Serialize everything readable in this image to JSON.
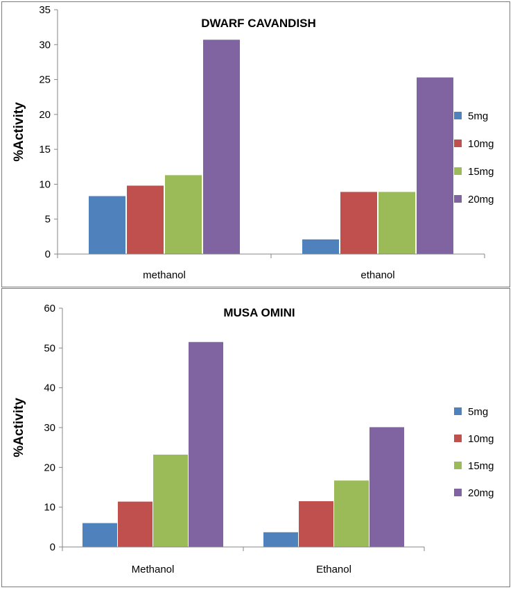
{
  "chart_data": [
    {
      "type": "bar",
      "title": "DWARF CAVANDISH",
      "ylabel": "%Activity",
      "xlabel": "",
      "ylim": [
        0,
        35
      ],
      "yticks": [
        0,
        5,
        10,
        15,
        20,
        25,
        30,
        35
      ],
      "categories": [
        "methanol",
        "ethanol"
      ],
      "series": [
        {
          "name": "5mg",
          "color": "#4F81BD",
          "values": [
            8.3,
            2.1
          ]
        },
        {
          "name": "10mg",
          "color": "#C0504D",
          "values": [
            9.8,
            8.9
          ]
        },
        {
          "name": "15mg",
          "color": "#9BBB59",
          "values": [
            11.3,
            8.9
          ]
        },
        {
          "name": "20mg",
          "color": "#8064A2",
          "values": [
            30.7,
            25.3
          ]
        }
      ],
      "legend_position": "right",
      "grid": false
    },
    {
      "type": "bar",
      "title": "MUSA OMINI",
      "ylabel": "%Activity",
      "xlabel": "",
      "ylim": [
        0,
        60
      ],
      "yticks": [
        0,
        10,
        20,
        30,
        40,
        50,
        60
      ],
      "categories": [
        "Methanol",
        "Ethanol"
      ],
      "series": [
        {
          "name": "5mg",
          "color": "#4F81BD",
          "values": [
            6.0,
            3.7
          ]
        },
        {
          "name": "10mg",
          "color": "#C0504D",
          "values": [
            11.4,
            11.5
          ]
        },
        {
          "name": "15mg",
          "color": "#9BBB59",
          "values": [
            23.2,
            16.7
          ]
        },
        {
          "name": "20mg",
          "color": "#8064A2",
          "values": [
            51.5,
            30.1
          ]
        }
      ],
      "legend_position": "right",
      "grid": false
    }
  ]
}
